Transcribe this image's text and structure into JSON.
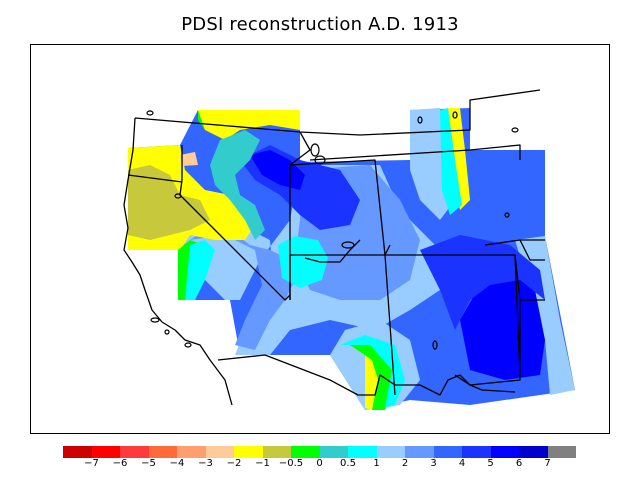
{
  "title": "PDSI reconstruction A.D. 1913",
  "legend": {
    "colors": [
      "#cc0000",
      "#ff0000",
      "#ff3a3a",
      "#ff6a3a",
      "#ff9f6f",
      "#ffcc99",
      "#ffff00",
      "#c8c83c",
      "#00ff00",
      "#33cccc",
      "#00ffff",
      "#99ccff",
      "#6699ff",
      "#3366ff",
      "#1a33ff",
      "#0000ff",
      "#0000cc",
      "#808080"
    ],
    "labels": [
      "−7",
      "−6",
      "−5",
      "−4",
      "−3",
      "−2",
      "−1",
      "−0.5",
      "0",
      "0.5",
      "1",
      "2",
      "3",
      "4",
      "5",
      "6",
      "7"
    ]
  }
}
